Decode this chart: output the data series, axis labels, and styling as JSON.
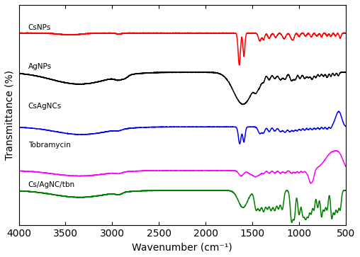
{
  "xlabel": "Wavenumber (cm⁻¹)",
  "ylabel": "Transmittance (%)",
  "labels": [
    "CsNPs",
    "AgNPs",
    "CsAgNCs",
    "Tobramycin",
    "Cs/AgNC/tbn"
  ],
  "colors": [
    "#ff0000",
    "#000000",
    "#0000ff",
    "#ff00ff",
    "#008000"
  ],
  "xticks": [
    4000,
    3500,
    3000,
    2500,
    2000,
    1500,
    1000,
    500
  ],
  "linewidth": 1.1,
  "figsize": [
    5.08,
    3.63
  ],
  "dpi": 100
}
